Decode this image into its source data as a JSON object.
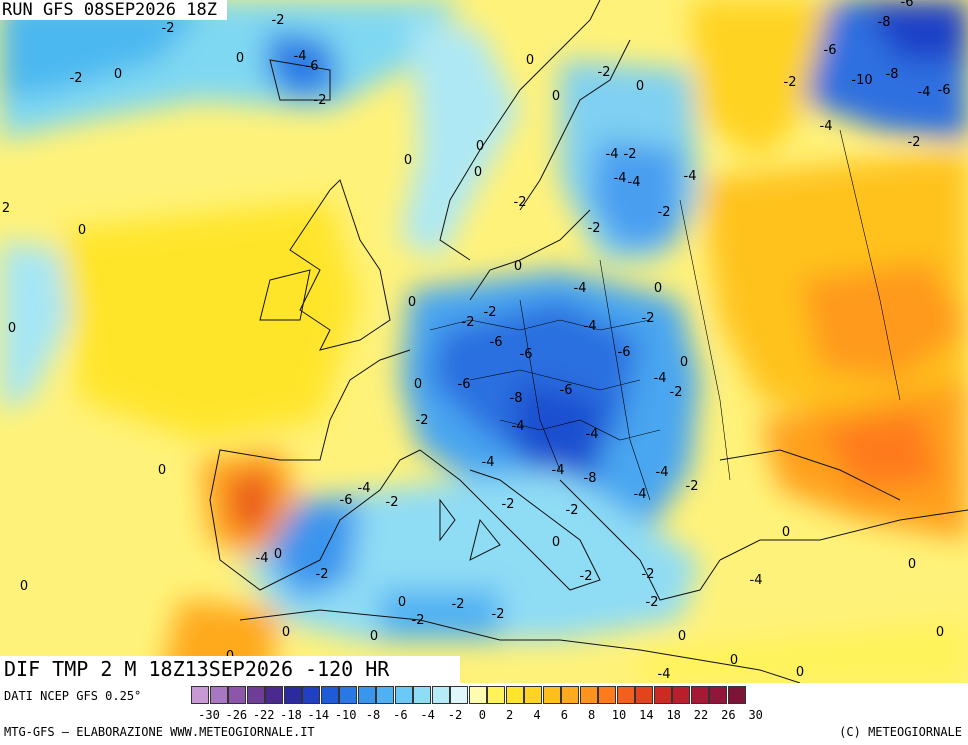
{
  "header": {
    "run_title": "RUN GFS 08SEP2026 18Z",
    "dif_title": "DIF TMP 2 M 18Z13SEP2026 -120 HR"
  },
  "footer": {
    "dati": "DATI NCEP GFS 0.25°",
    "credit": "MTG-GFS – ELABORAZIONE WWW.METEOGIORNALE.IT",
    "copyright": "(C) METEOGIORNALE"
  },
  "legend": {
    "colors": [
      "#c79ad6",
      "#a877c4",
      "#8c56ad",
      "#6e3d97",
      "#4a2a8e",
      "#2b2aa0",
      "#1f3fc4",
      "#1f5ad8",
      "#2a78e6",
      "#3a95ee",
      "#4fb1f3",
      "#6cc8f5",
      "#8fdcf5",
      "#b5ebf7",
      "#dff7fa",
      "#fffbb0",
      "#fff35a",
      "#ffe52a",
      "#ffd322",
      "#ffbe1e",
      "#ffa91e",
      "#ff931d",
      "#ff7a1a",
      "#f45f1b",
      "#e3441d",
      "#cf2a22",
      "#ba1e2c",
      "#a61934",
      "#92163a",
      "#7d1336"
    ],
    "ticks": [
      "-30",
      "-26",
      "-22",
      "-18",
      "-14",
      "-10",
      "-8",
      "-6",
      "-4",
      "-2",
      "0",
      "2",
      "4",
      "6",
      "8",
      "10",
      "14",
      "18",
      "22",
      "26",
      "30"
    ]
  },
  "map_labels": [
    "-2",
    "-2",
    "0",
    "-2",
    "0",
    "-4",
    "-6",
    "-2",
    "-6",
    "-8",
    "-6",
    "-10",
    "-8",
    "-4",
    "-6",
    "-4",
    "-2",
    "-2",
    "0",
    "0",
    "-2",
    "0",
    "0",
    "2",
    "0",
    "0",
    "0",
    "-2",
    "0",
    "-4",
    "-4",
    "-2",
    "0",
    "-4",
    "-4",
    "-2",
    "-2",
    "-2",
    "0",
    "0",
    "-4",
    "-2",
    "-4",
    "-6",
    "-6",
    "-6",
    "-2",
    "0",
    "-6",
    "-8",
    "-6",
    "-4",
    "0",
    "-2",
    "-2",
    "-4",
    "-4",
    "-4",
    "-4",
    "-4",
    "-8",
    "-4",
    "-6",
    "-2",
    "-4",
    "-2",
    "-2",
    "0",
    "-2",
    "-4",
    "-2",
    "-2",
    "-2",
    "-2",
    "-2",
    "-2",
    "-2",
    "0",
    "0",
    "0",
    "0",
    "0",
    "0",
    "-4",
    "0",
    "0",
    "0",
    "0",
    "0",
    "0",
    "-4",
    "0"
  ]
}
